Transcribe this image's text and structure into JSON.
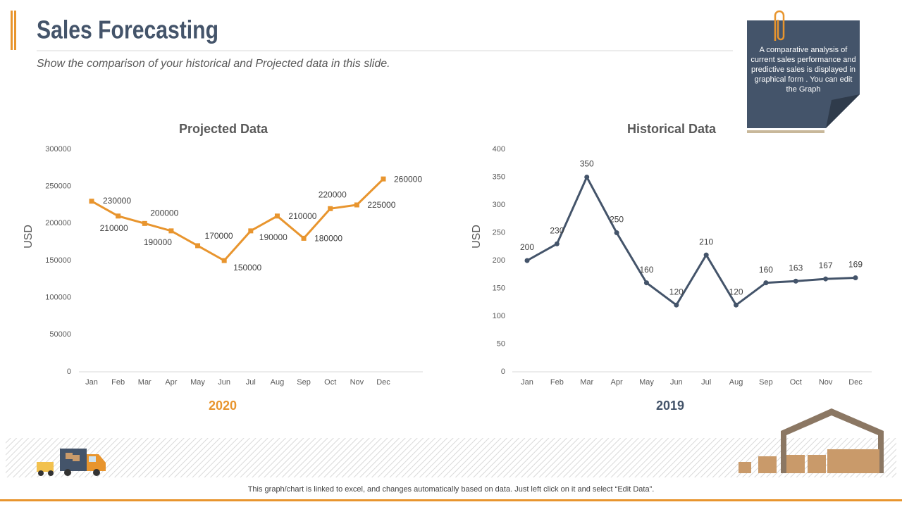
{
  "header": {
    "title": "Sales Forecasting",
    "subtitle": "Show the comparison of your historical and Projected data in this slide."
  },
  "note": "A comparative analysis of current sales performance and predictive sales is displayed in graphical form . You can edit the Graph",
  "footer": "This graph/chart is linked to excel,  and changes automatically based on data. Just left click on it and select “Edit Data”.",
  "chart_data": [
    {
      "type": "line",
      "title": "Projected Data",
      "ylabel": "USD",
      "xlabel": "2020",
      "categories": [
        "Jan",
        "Feb",
        "Mar",
        "Apr",
        "May",
        "Jun",
        "Jul",
        "Aug",
        "Sep",
        "Oct",
        "Nov",
        "Dec"
      ],
      "values": [
        230000,
        210000,
        200000,
        190000,
        170000,
        150000,
        190000,
        210000,
        180000,
        220000,
        225000,
        260000
      ],
      "color": "#e8952e",
      "marker": "square",
      "grid": false,
      "ylim": [
        0,
        300000
      ],
      "yticks": [
        0,
        50000,
        100000,
        150000,
        200000,
        250000,
        300000
      ]
    },
    {
      "type": "line",
      "title": "Historical  Data",
      "ylabel": "USD",
      "xlabel": "2019",
      "categories": [
        "Jan",
        "Feb",
        "Mar",
        "Apr",
        "May",
        "Jun",
        "Jul",
        "Aug",
        "Sep",
        "Oct",
        "Nov",
        "Dec"
      ],
      "values": [
        200,
        230,
        350,
        250,
        160,
        120,
        210,
        120,
        160,
        163,
        167,
        169
      ],
      "color": "#44546a",
      "marker": "circle",
      "grid": false,
      "ylim": [
        0,
        400
      ],
      "yticks": [
        0,
        50,
        100,
        150,
        200,
        250,
        300,
        350,
        400
      ]
    }
  ]
}
